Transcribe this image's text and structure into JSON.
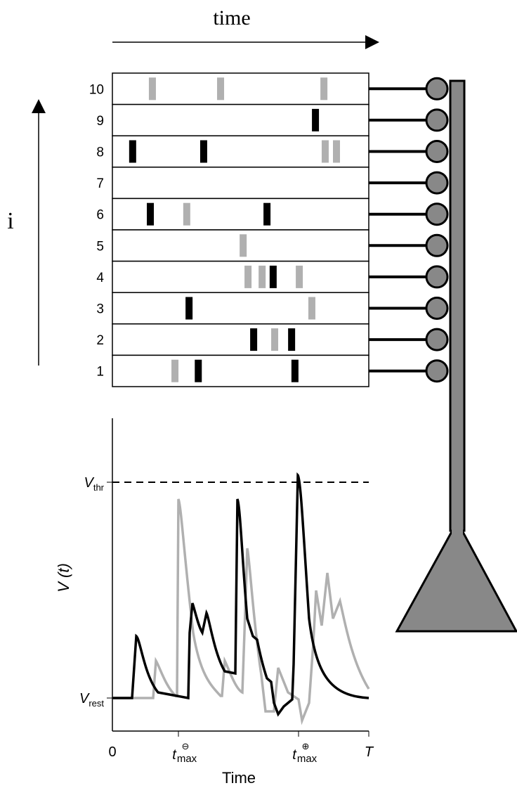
{
  "header": {
    "time_label": "time",
    "index_label": "i"
  },
  "colors": {
    "black": "#000000",
    "gray": "#b0b0b0",
    "neuron": "#888888"
  },
  "rows": [
    {
      "label": "10",
      "black": [],
      "gray": [
        0.156,
        0.422,
        0.825
      ]
    },
    {
      "label": "9",
      "black": [
        0.792
      ],
      "gray": []
    },
    {
      "label": "8",
      "black": [
        0.079,
        0.356
      ],
      "gray": [
        0.83,
        0.874
      ]
    },
    {
      "label": "7",
      "black": [],
      "gray": []
    },
    {
      "label": "6",
      "black": [
        0.148,
        0.603
      ],
      "gray": [
        0.29
      ]
    },
    {
      "label": "5",
      "black": [],
      "gray": [
        0.51
      ]
    },
    {
      "label": "4",
      "black": [
        0.627
      ],
      "gray": [
        0.529,
        0.584,
        0.729
      ]
    },
    {
      "label": "3",
      "black": [
        0.299
      ],
      "gray": [
        0.778
      ]
    },
    {
      "label": "2",
      "black": [
        0.551,
        0.699
      ],
      "gray": [
        0.633
      ]
    },
    {
      "label": "1",
      "black": [
        0.335,
        0.712
      ],
      "gray": [
        0.244
      ]
    }
  ],
  "plot": {
    "y_label": "V (t)",
    "x_label": "Time",
    "v_thr": {
      "symbol": "V",
      "sub": "thr"
    },
    "v_rest": {
      "symbol": "V",
      "sub": "rest"
    },
    "x_ticks": {
      "zero": "0",
      "t_minus": {
        "symbol": "t",
        "sup": "⊖",
        "sub": "max"
      },
      "t_plus": {
        "symbol": "t",
        "sup": "⊕",
        "sub": "max"
      },
      "end": "T"
    }
  }
}
